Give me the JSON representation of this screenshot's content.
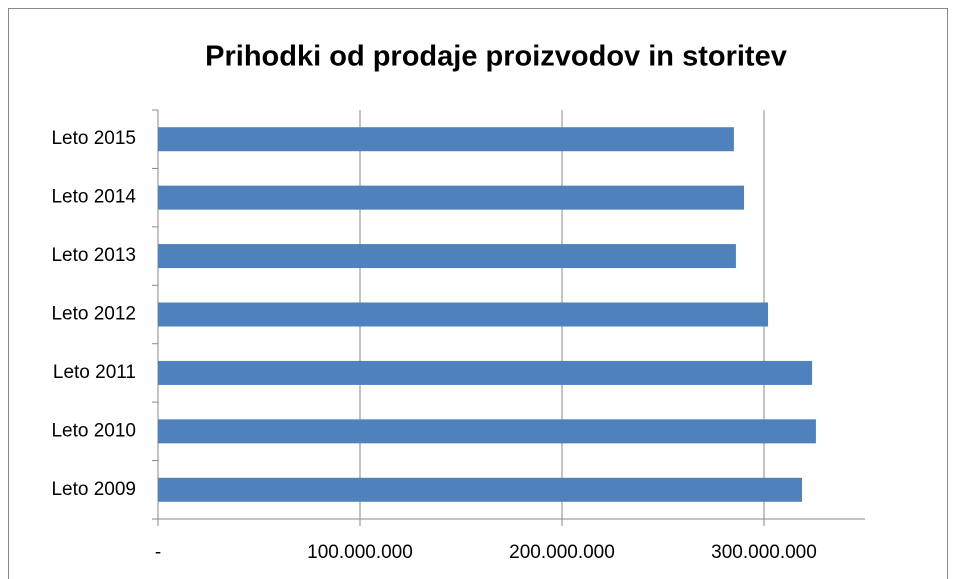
{
  "chart_data": {
    "type": "bar",
    "orientation": "horizontal",
    "title": "Prihodki od prodaje proizvodov in storitev",
    "categories": [
      "Leto 2009",
      "Leto 2010",
      "Leto 2011",
      "Leto 2012",
      "Leto 2013",
      "Leto 2014",
      "Leto 2015"
    ],
    "values": [
      318800000,
      325700000,
      323800000,
      302000000,
      286100000,
      290100000,
      285100000
    ],
    "color": "#4f81bd",
    "xlim": [
      0,
      350000000
    ],
    "xticks": [
      {
        "value": 0,
        "label": "-"
      },
      {
        "value": 100000000,
        "label": "100.000.000"
      },
      {
        "value": 200000000,
        "label": "200.000.000"
      },
      {
        "value": 300000000,
        "label": "300.000.000"
      }
    ],
    "grid": true
  }
}
